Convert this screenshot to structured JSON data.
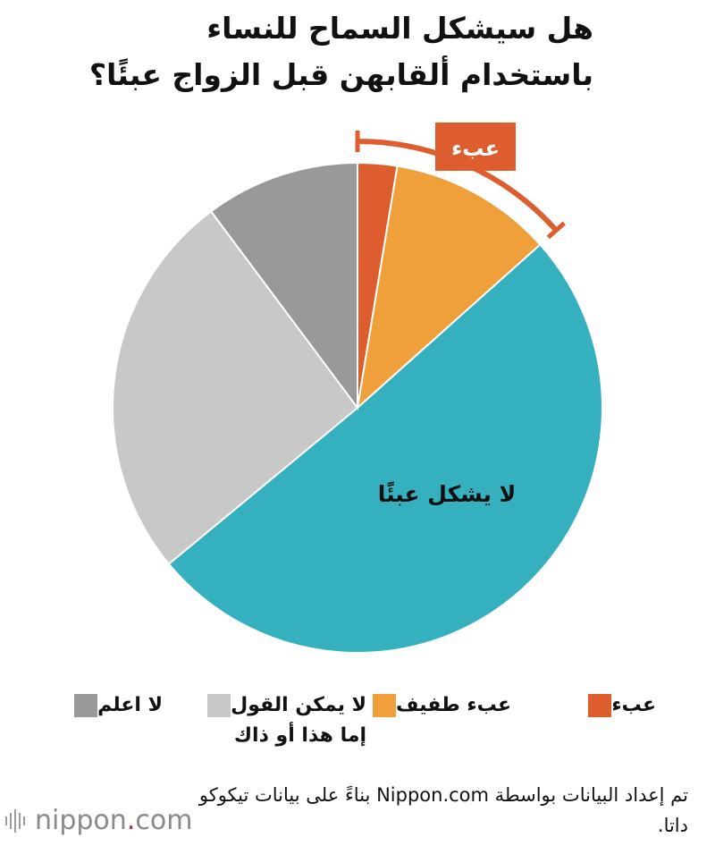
{
  "chart_data": {
    "type": "pie",
    "title_line1": "هل سيشكل السماح للنساء",
    "title_line2": "باستخدام ألقابهن قبل الزواج عبئًا؟",
    "slices": [
      {
        "name": "عبء",
        "value": 2.6,
        "color": "#dd5d2f"
      },
      {
        "name": "عبء طفيف",
        "value": 10.8,
        "color": "#f0a03a"
      },
      {
        "name": "لا يشكل عبئًا",
        "value": 50.6,
        "color": "#35b0bf"
      },
      {
        "name": "لا يمكن القول\nإما هذا أو ذاك",
        "value": 25.8,
        "color": "#c8c8c8"
      },
      {
        "name": "لا اعلم",
        "value": 10.2,
        "color": "#999999"
      }
    ],
    "slice_label": "لا يشكل عبئًا",
    "callout_label": "عبء",
    "callout_color": "#dd5d2f"
  },
  "legend": [
    {
      "label": "عبء",
      "color": "#dd5d2f"
    },
    {
      "label": "عبء طفيف",
      "color": "#f0a03a"
    },
    {
      "label": "لا يمكن القول\nإما هذا أو ذاك",
      "color": "#c8c8c8"
    },
    {
      "label": "لا اعلم",
      "color": "#999999"
    }
  ],
  "source": "تم إعداد البيانات بواسطة Nippon.com بناءً على بيانات تيكوكو داتا.",
  "logo": {
    "name": "nippon",
    "dot": ".",
    "suffix": "com"
  }
}
